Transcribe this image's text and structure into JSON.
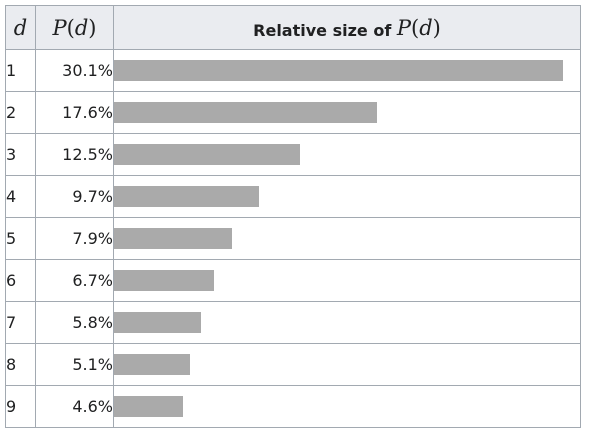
{
  "header": {
    "d_symbol": "d",
    "p_symbol_letter": "P",
    "p_symbol_open": "(",
    "p_symbol_var": "d",
    "p_symbol_close": ")",
    "relative_label": "Relative size of",
    "relative_math_letter": "P",
    "relative_math_open": "(",
    "relative_math_var": "d",
    "relative_math_close": ")"
  },
  "rows": [
    {
      "d": "1",
      "p": "30.1%"
    },
    {
      "d": "2",
      "p": "17.6%"
    },
    {
      "d": "3",
      "p": "12.5%"
    },
    {
      "d": "4",
      "p": "9.7%"
    },
    {
      "d": "5",
      "p": "7.9%"
    },
    {
      "d": "6",
      "p": "6.7%"
    },
    {
      "d": "7",
      "p": "5.8%"
    },
    {
      "d": "8",
      "p": "5.1%"
    },
    {
      "d": "9",
      "p": "4.6%"
    }
  ],
  "chart_data": {
    "type": "bar",
    "orientation": "horizontal",
    "categories": [
      "1",
      "2",
      "3",
      "4",
      "5",
      "6",
      "7",
      "8",
      "9"
    ],
    "values": [
      30.1,
      17.6,
      12.5,
      9.7,
      7.9,
      6.7,
      5.8,
      5.1,
      4.6
    ],
    "unit": "%",
    "bar_color": "#aaaaaa",
    "max_value": 30.1
  }
}
